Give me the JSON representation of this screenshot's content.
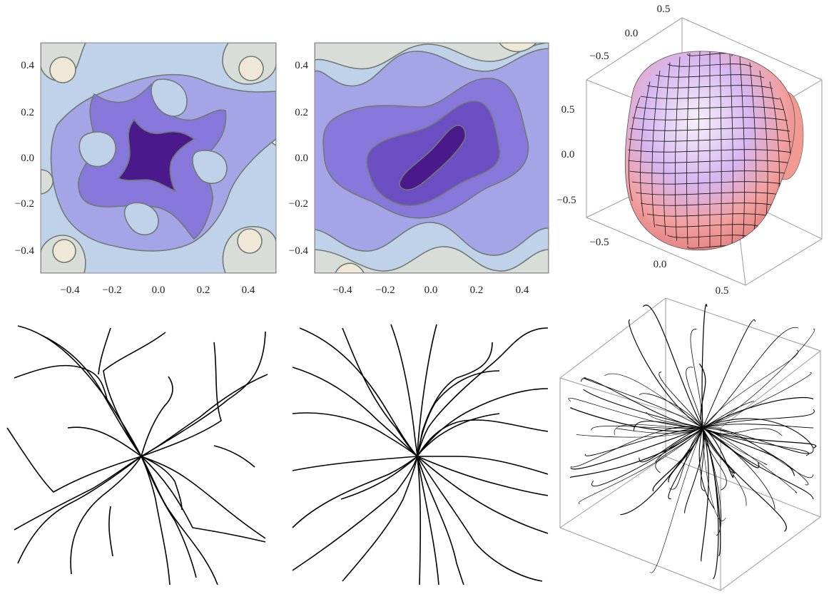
{
  "figure": {
    "panels": [
      {
        "id": "contour-a",
        "kind": "contour",
        "x_ticks": [
          "−0.4",
          "−0.2",
          "0.0",
          "0.2",
          "0.4"
        ],
        "y_ticks": [
          "0.4",
          "0.2",
          "0.0",
          "−0.2",
          "−0.4"
        ]
      },
      {
        "id": "contour-b",
        "kind": "contour",
        "x_ticks": [
          "−0.4",
          "−0.2",
          "0.0",
          "0.2",
          "0.4"
        ],
        "y_ticks": [
          "0.4",
          "0.2",
          "0.0",
          "−0.2",
          "−0.4"
        ]
      },
      {
        "id": "surface-3d",
        "kind": "3d-surface",
        "tick_labels": [
          "0.5",
          "0.0",
          "−0.5",
          "0.5",
          "0.0",
          "−0.5",
          "−0.5",
          "0.0",
          "0.5"
        ]
      },
      {
        "id": "streams-a",
        "kind": "stream-lines"
      },
      {
        "id": "streams-b",
        "kind": "stream-lines"
      },
      {
        "id": "streams-3d",
        "kind": "3d-stream-lines"
      }
    ],
    "contour_palette": [
      "#4a1a8c",
      "#6b4fc2",
      "#8877da",
      "#a5a4e6",
      "#c0d2ea",
      "#d9ddd8",
      "#f0e8d6"
    ],
    "surface_colors": [
      "#8a62f0",
      "#f6f0fa",
      "#f28a80"
    ]
  }
}
